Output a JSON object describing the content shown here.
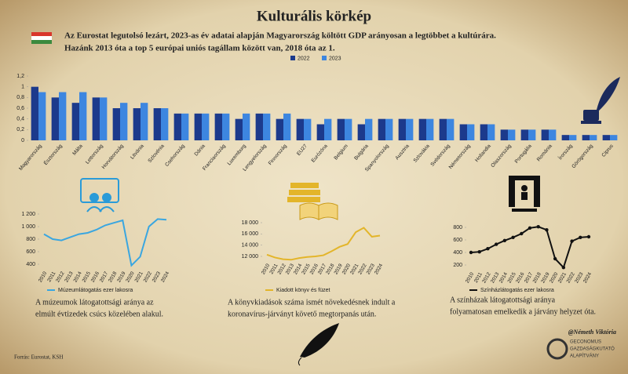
{
  "title": "Kulturális körkép",
  "intro": [
    "Az Eurostat legutolsó lezárt, 2023-as év adatai alapján Magyarország költött GDP arányosan a legtöbbet a kultúrára.",
    "Hazánk 2013 óta a top 5 európai uniós tagállam között van, 2018 óta az 1."
  ],
  "footer": {
    "source": "Forrás: Eurostat, KSH",
    "author": "@Németh Viktória",
    "logo": [
      "GECONOMUS",
      "GAZDASÁGKUTATÓ",
      "ALAPÍTVÁNY"
    ]
  },
  "chart_data": [
    {
      "type": "bar",
      "categories": [
        "Magyarország",
        "Észtország",
        "Málta",
        "Lettország",
        "Horvátország",
        "Litvánia",
        "Szlovénia",
        "Csehország",
        "Dánia",
        "Franciaország",
        "Luxemburg",
        "Lengyelország",
        "Finnország",
        "EU27",
        "Eurózóna",
        "Belgium",
        "Bulgária",
        "Spanyolország",
        "Ausztria",
        "Szlovákia",
        "Svédország",
        "Németország",
        "Hollandia",
        "Olaszország",
        "Portugália",
        "Románia",
        "Írország",
        "Görögország",
        "Ciprus"
      ],
      "series": [
        {
          "name": "2022",
          "color": "#1c3a8c",
          "values": [
            1.0,
            0.8,
            0.7,
            0.8,
            0.6,
            0.6,
            0.6,
            0.5,
            0.5,
            0.5,
            0.4,
            0.5,
            0.4,
            0.4,
            0.3,
            0.4,
            0.3,
            0.4,
            0.4,
            0.4,
            0.4,
            0.3,
            0.3,
            0.2,
            0.2,
            0.2,
            0.1,
            0.1,
            0.1
          ]
        },
        {
          "name": "2023",
          "color": "#3d86e0",
          "values": [
            0.9,
            0.9,
            0.9,
            0.8,
            0.7,
            0.7,
            0.6,
            0.5,
            0.5,
            0.5,
            0.5,
            0.5,
            0.5,
            0.4,
            0.4,
            0.4,
            0.4,
            0.4,
            0.4,
            0.4,
            0.4,
            0.3,
            0.3,
            0.2,
            0.2,
            0.2,
            0.1,
            0.1,
            0.1
          ]
        }
      ],
      "ylim": [
        0,
        1.2
      ],
      "yticks": [
        0,
        {
          "value": 0.2,
          "label": "0,2"
        },
        {
          "value": 0.4,
          "label": "0,4"
        },
        {
          "value": 0.6,
          "label": "0,6"
        },
        {
          "value": 0.8,
          "label": "0,8"
        },
        1,
        {
          "value": 1.2,
          "label": "1,2"
        }
      ]
    },
    {
      "type": "line",
      "categories": [
        "2010",
        "2011",
        "2012",
        "2013",
        "2014",
        "2015",
        "2016",
        "2017",
        "2018",
        "2019",
        "2020",
        "2021",
        "2022",
        "2023",
        "2024"
      ],
      "series": [
        {
          "name": "Múzeumlátogatás ezer lakosra",
          "color": "#3aa6e0",
          "values": [
            880,
            800,
            780,
            830,
            880,
            900,
            950,
            1020,
            1060,
            1100,
            380,
            520,
            1000,
            1120,
            1110
          ]
        }
      ],
      "ylim": [
        400,
        1200
      ],
      "yticks": [
        400,
        600,
        800,
        {
          "value": 1000,
          "label": "1 000"
        },
        {
          "value": 1200,
          "label": "1 200"
        }
      ],
      "caption": [
        "A múzeumok látogatottsági aránya az",
        "elmúlt évtizedek csúcs közelében alakul."
      ]
    },
    {
      "type": "line",
      "categories": [
        "2010",
        "2011",
        "2012",
        "2013",
        "2014",
        "2015",
        "2016",
        "2017",
        "2018",
        "2019",
        "2020",
        "2021",
        "2022",
        "2023",
        "2024"
      ],
      "series": [
        {
          "name": "Kiadott könyv és füzet",
          "color": "#e3b52a",
          "values": [
            12300,
            11800,
            11500,
            11400,
            11700,
            11900,
            12000,
            12200,
            12900,
            13700,
            14200,
            16300,
            17100,
            15500,
            15700
          ]
        }
      ],
      "ylim": [
        12000,
        18000
      ],
      "yticks": [
        {
          "value": 12000,
          "label": "12 000"
        },
        {
          "value": 14000,
          "label": "14 000"
        },
        {
          "value": 16000,
          "label": "16 000"
        },
        {
          "value": 18000,
          "label": "18 000"
        }
      ],
      "caption": [
        "A könyvkiadások száma ismét növekedésnek indult a",
        "koronavírus-járványt követő megtorpanás után."
      ]
    },
    {
      "type": "line",
      "categories": [
        "2010",
        "2011",
        "2012",
        "2013",
        "2014",
        "2015",
        "2016",
        "2017",
        "2018",
        "2019",
        "2020",
        "2021",
        "2022",
        "2023",
        "2024"
      ],
      "series": [
        {
          "name": "Színházlátogatás ezer lakosra",
          "color": "#111111",
          "values": [
            400,
            410,
            460,
            530,
            590,
            640,
            700,
            790,
            810,
            760,
            300,
            160,
            580,
            640,
            650
          ]
        }
      ],
      "ylim": [
        200,
        800
      ],
      "yticks": [
        200,
        400,
        600,
        800
      ],
      "marker": true,
      "caption": [
        "A színházak látogatottsági aránya",
        "folyamatosan emelkedik a járvány helyzet óta."
      ]
    }
  ]
}
